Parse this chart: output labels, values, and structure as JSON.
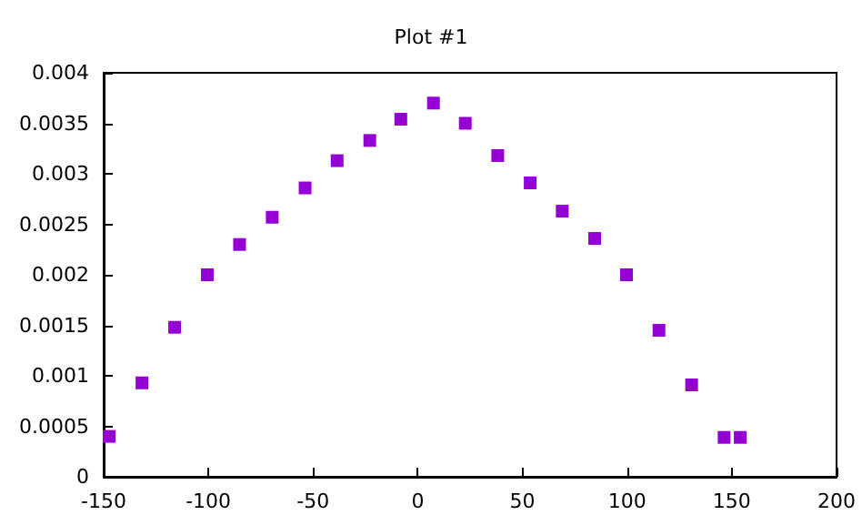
{
  "chart_data": {
    "type": "scatter",
    "title": "Plot #1",
    "x": [
      -147.4,
      -131.7,
      -116.1,
      -100.5,
      -85.1,
      -69.5,
      -53.8,
      -38.5,
      -22.9,
      -8.1,
      7.5,
      22.7,
      38.2,
      53.7,
      69,
      84.5,
      99.7,
      115.2,
      130.8,
      146.3,
      154
    ],
    "series": [
      {
        "color": "#9400d3",
        "values": [
          0.0004,
          0.00093,
          0.00148,
          0.002,
          0.0023,
          0.00257,
          0.00286,
          0.00313,
          0.00333,
          0.00354,
          0.0037,
          0.0035,
          0.00318,
          0.00291,
          0.00263,
          0.00236,
          0.002,
          0.00145,
          0.00091,
          0.00039,
          0.00039
        ]
      }
    ],
    "xlim": [
      -150,
      200
    ],
    "xticks": [
      -150,
      -100,
      -50,
      0,
      50,
      100,
      150,
      200
    ],
    "ylim": [
      0,
      0.004
    ],
    "yticks": [
      0,
      0.0005,
      0.001,
      0.0015,
      0.002,
      0.0025,
      0.003,
      0.0035,
      0.004
    ],
    "marker": "square",
    "grid": false
  }
}
